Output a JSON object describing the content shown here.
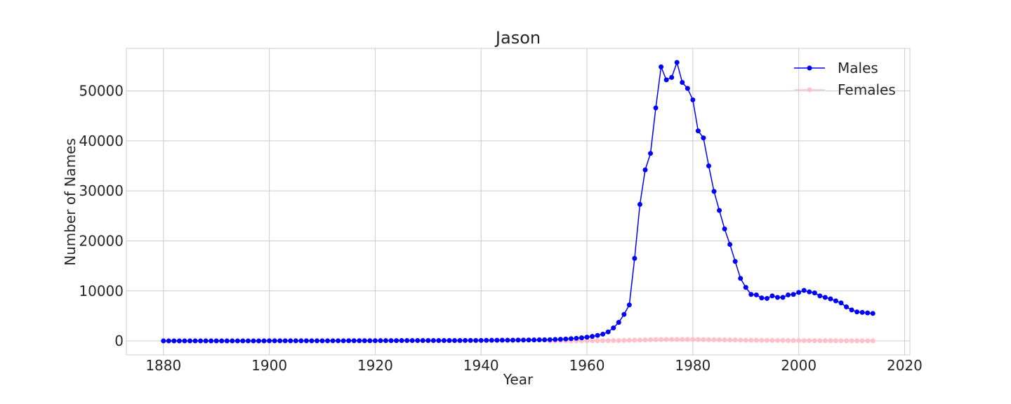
{
  "chart_data": {
    "type": "line",
    "title": "Jason",
    "xlabel": "Year",
    "ylabel": "Number of Names",
    "xlim": [
      1873,
      2021
    ],
    "ylim": [
      -2800,
      58500
    ],
    "xticks": [
      1880,
      1900,
      1920,
      1940,
      1960,
      1980,
      2000,
      2020
    ],
    "yticks": [
      0,
      10000,
      20000,
      30000,
      40000,
      50000
    ],
    "grid": true,
    "legend": "top-right",
    "x": [
      1880,
      1881,
      1882,
      1883,
      1884,
      1885,
      1886,
      1887,
      1888,
      1889,
      1890,
      1891,
      1892,
      1893,
      1894,
      1895,
      1896,
      1897,
      1898,
      1899,
      1900,
      1901,
      1902,
      1903,
      1904,
      1905,
      1906,
      1907,
      1908,
      1909,
      1910,
      1911,
      1912,
      1913,
      1914,
      1915,
      1916,
      1917,
      1918,
      1919,
      1920,
      1921,
      1922,
      1923,
      1924,
      1925,
      1926,
      1927,
      1928,
      1929,
      1930,
      1931,
      1932,
      1933,
      1934,
      1935,
      1936,
      1937,
      1938,
      1939,
      1940,
      1941,
      1942,
      1943,
      1944,
      1945,
      1946,
      1947,
      1948,
      1949,
      1950,
      1951,
      1952,
      1953,
      1954,
      1955,
      1956,
      1957,
      1958,
      1959,
      1960,
      1961,
      1962,
      1963,
      1964,
      1965,
      1966,
      1967,
      1968,
      1969,
      1970,
      1971,
      1972,
      1973,
      1974,
      1975,
      1976,
      1977,
      1978,
      1979,
      1980,
      1981,
      1982,
      1983,
      1984,
      1985,
      1986,
      1987,
      1988,
      1989,
      1990,
      1991,
      1992,
      1993,
      1994,
      1995,
      1996,
      1997,
      1998,
      1999,
      2000,
      2001,
      2002,
      2003,
      2004,
      2005,
      2006,
      2007,
      2008,
      2009,
      2010,
      2011,
      2012,
      2013,
      2014
    ],
    "series": [
      {
        "name": "Males",
        "color": "#0000ff",
        "values": [
          10,
          10,
          10,
          10,
          10,
          10,
          10,
          10,
          10,
          10,
          10,
          10,
          10,
          10,
          10,
          10,
          10,
          10,
          10,
          10,
          20,
          20,
          20,
          20,
          20,
          20,
          20,
          20,
          20,
          20,
          20,
          20,
          30,
          30,
          30,
          40,
          40,
          40,
          40,
          40,
          40,
          50,
          50,
          50,
          60,
          70,
          70,
          70,
          80,
          80,
          80,
          80,
          80,
          80,
          80,
          80,
          80,
          90,
          90,
          90,
          100,
          110,
          120,
          130,
          140,
          140,
          150,
          160,
          170,
          180,
          190,
          210,
          220,
          240,
          280,
          330,
          380,
          450,
          520,
          620,
          740,
          900,
          1100,
          1350,
          1800,
          2600,
          3700,
          5300,
          7200,
          16500,
          27300,
          34200,
          37500,
          46600,
          54800,
          52200,
          52700,
          55700,
          51700,
          50500,
          48200,
          42000,
          40600,
          35000,
          29900,
          26100,
          22400,
          19300,
          15900,
          12500,
          10700,
          9300,
          9200,
          8600,
          8500,
          9000,
          8700,
          8700,
          9200,
          9300,
          9700,
          10100,
          9800,
          9600,
          9000,
          8700,
          8400,
          8000,
          7600,
          6800,
          6200,
          5800,
          5700,
          5600,
          5500
        ]
      },
      {
        "name": "Females",
        "color": "#ffc0cb",
        "values": [
          0,
          0,
          0,
          0,
          0,
          0,
          0,
          0,
          0,
          0,
          0,
          0,
          0,
          0,
          0,
          0,
          0,
          0,
          0,
          0,
          0,
          0,
          0,
          0,
          0,
          0,
          0,
          0,
          0,
          0,
          0,
          0,
          0,
          0,
          0,
          0,
          0,
          0,
          0,
          0,
          0,
          0,
          0,
          0,
          0,
          0,
          0,
          0,
          0,
          0,
          0,
          0,
          0,
          0,
          0,
          0,
          0,
          0,
          0,
          0,
          0,
          0,
          0,
          0,
          0,
          0,
          0,
          0,
          0,
          0,
          0,
          0,
          0,
          10,
          10,
          15,
          20,
          20,
          25,
          30,
          35,
          40,
          45,
          50,
          60,
          70,
          80,
          100,
          120,
          150,
          180,
          200,
          230,
          250,
          270,
          280,
          290,
          300,
          300,
          290,
          280,
          270,
          260,
          250,
          240,
          230,
          210,
          200,
          180,
          160,
          140,
          130,
          120,
          110,
          100,
          95,
          90,
          85,
          80,
          75,
          70,
          65,
          60,
          55,
          50,
          45,
          40,
          38,
          35,
          32,
          30,
          28,
          26,
          24,
          22
        ]
      }
    ]
  }
}
